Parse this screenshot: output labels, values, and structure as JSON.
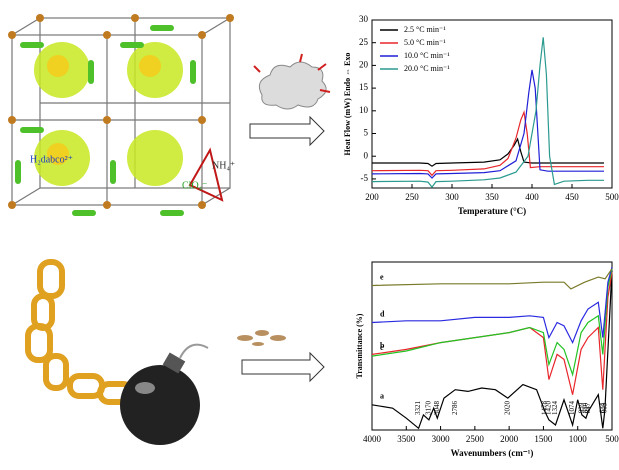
{
  "labels": {
    "cation": "NH₄⁺",
    "organic": "H₂dabco²⁺",
    "anion": "ClO₄⁻"
  },
  "chart_data": [
    {
      "type": "line",
      "xlabel": "Temperature (°C)",
      "ylabel": "Heat Flow (mW) Endo ⇔ Exo",
      "xlim": [
        200,
        500
      ],
      "ylim": [
        -7,
        30
      ],
      "xticks": [
        200,
        250,
        300,
        350,
        400,
        450,
        500
      ],
      "yticks": [
        -5,
        0,
        5,
        10,
        15,
        20,
        25,
        30
      ],
      "legend": "upper left",
      "series": [
        {
          "name": "2.5 °C min⁻¹",
          "color": "#000000",
          "x": [
            200,
            260,
            270,
            275,
            280,
            300,
            340,
            360,
            370,
            378,
            382,
            386,
            390,
            400,
            450,
            490
          ],
          "values": [
            -1.5,
            -1.5,
            -1.6,
            -2.2,
            -1.6,
            -1.5,
            -1.3,
            -0.8,
            0.5,
            2.5,
            3.8,
            1.0,
            -1.3,
            -1.5,
            -1.5,
            -1.5
          ]
        },
        {
          "name": "5.0 °C min⁻¹",
          "color": "#e8262b",
          "x": [
            200,
            260,
            270,
            275,
            280,
            300,
            340,
            360,
            370,
            380,
            386,
            390,
            394,
            398,
            410,
            450,
            490
          ],
          "values": [
            -3.2,
            -3.1,
            -3.2,
            -4.2,
            -3.2,
            -3.1,
            -2.8,
            -2.0,
            -0.5,
            4.0,
            8.0,
            9.7,
            5.0,
            -2.5,
            -2.3,
            -2.3,
            -2.3
          ]
        },
        {
          "name": "10.0 °C min⁻¹",
          "color": "#1f1fd6",
          "x": [
            200,
            260,
            270,
            275,
            280,
            300,
            340,
            360,
            380,
            390,
            396,
            400,
            404,
            410,
            420,
            450,
            490
          ],
          "values": [
            -3.9,
            -3.8,
            -3.9,
            -4.8,
            -3.9,
            -3.8,
            -3.6,
            -3.2,
            -1.0,
            5.0,
            14.0,
            19.0,
            15.0,
            -3.0,
            -3.3,
            -3.3,
            -3.3
          ]
        },
        {
          "name": "20.0 °C min⁻¹",
          "color": "#2a9a8f",
          "x": [
            200,
            260,
            270,
            275,
            280,
            300,
            340,
            360,
            380,
            395,
            405,
            410,
            414,
            418,
            422,
            428,
            440,
            470,
            490
          ],
          "values": [
            -5.6,
            -5.5,
            -5.7,
            -6.8,
            -5.6,
            -5.5,
            -5.2,
            -4.8,
            -3.5,
            0.0,
            10.0,
            20.0,
            26.2,
            18.0,
            0.0,
            -6.2,
            -5.5,
            -5.3,
            -5.3
          ]
        }
      ]
    },
    {
      "type": "line",
      "xlabel": "Wavenumbers (cm⁻¹)",
      "ylabel": "Transmittance (%)",
      "xlim": [
        4000,
        500
      ],
      "ylim": [
        0,
        100
      ],
      "xticks": [
        4000,
        3500,
        3000,
        2500,
        2000,
        1500,
        1000,
        500
      ],
      "annotations": [
        3321,
        3170,
        3048,
        2786,
        2020,
        1478,
        1420,
        1324,
        1074,
        939,
        880,
        847,
        634,
        603
      ],
      "series": [
        {
          "name": "a",
          "color": "#000000",
          "x": [
            4000,
            3700,
            3500,
            3321,
            3250,
            3170,
            3100,
            3048,
            2950,
            2786,
            2600,
            2400,
            2200,
            2020,
            1800,
            1600,
            1478,
            1420,
            1324,
            1200,
            1074,
            1000,
            939,
            880,
            847,
            700,
            634,
            603,
            520,
            500
          ],
          "values": [
            15,
            13,
            7,
            1,
            9,
            6,
            13,
            7,
            19,
            24,
            23,
            25,
            24,
            19,
            27,
            24,
            11,
            6,
            3,
            18,
            3,
            18,
            9,
            7,
            11,
            21,
            1,
            12,
            79,
            97
          ]
        },
        {
          "name": "b",
          "color": "#e8262b",
          "x": [
            4000,
            3500,
            3000,
            2500,
            2000,
            1700,
            1500,
            1420,
            1300,
            1200,
            1074,
            950,
            850,
            700,
            634,
            560,
            500
          ],
          "values": [
            45,
            48,
            52,
            55,
            58,
            61,
            55,
            30,
            45,
            42,
            21,
            48,
            55,
            61,
            24,
            79,
            94
          ]
        },
        {
          "name": "c",
          "color": "#22c322",
          "x": [
            4000,
            3500,
            3000,
            2500,
            2000,
            1700,
            1500,
            1420,
            1300,
            1200,
            1074,
            950,
            850,
            700,
            634,
            560,
            500
          ],
          "values": [
            44,
            47,
            52,
            55,
            58,
            61,
            58,
            39,
            52,
            48,
            33,
            58,
            64,
            68,
            45,
            85,
            96
          ]
        },
        {
          "name": "d",
          "color": "#2a2ae0",
          "x": [
            4000,
            3500,
            3000,
            2500,
            2000,
            1700,
            1500,
            1420,
            1300,
            1200,
            1074,
            950,
            850,
            700,
            634,
            560,
            500
          ],
          "values": [
            64,
            65,
            65,
            67,
            67,
            68,
            67,
            55,
            64,
            62,
            52,
            65,
            72,
            76,
            55,
            88,
            97
          ]
        },
        {
          "name": "e",
          "color": "#7a7a2a",
          "x": [
            4000,
            3000,
            2000,
            1500,
            1200,
            1100,
            900,
            700,
            600,
            500
          ],
          "values": [
            86,
            87,
            87,
            88,
            88,
            84,
            88,
            91,
            90,
            96
          ]
        }
      ]
    }
  ]
}
